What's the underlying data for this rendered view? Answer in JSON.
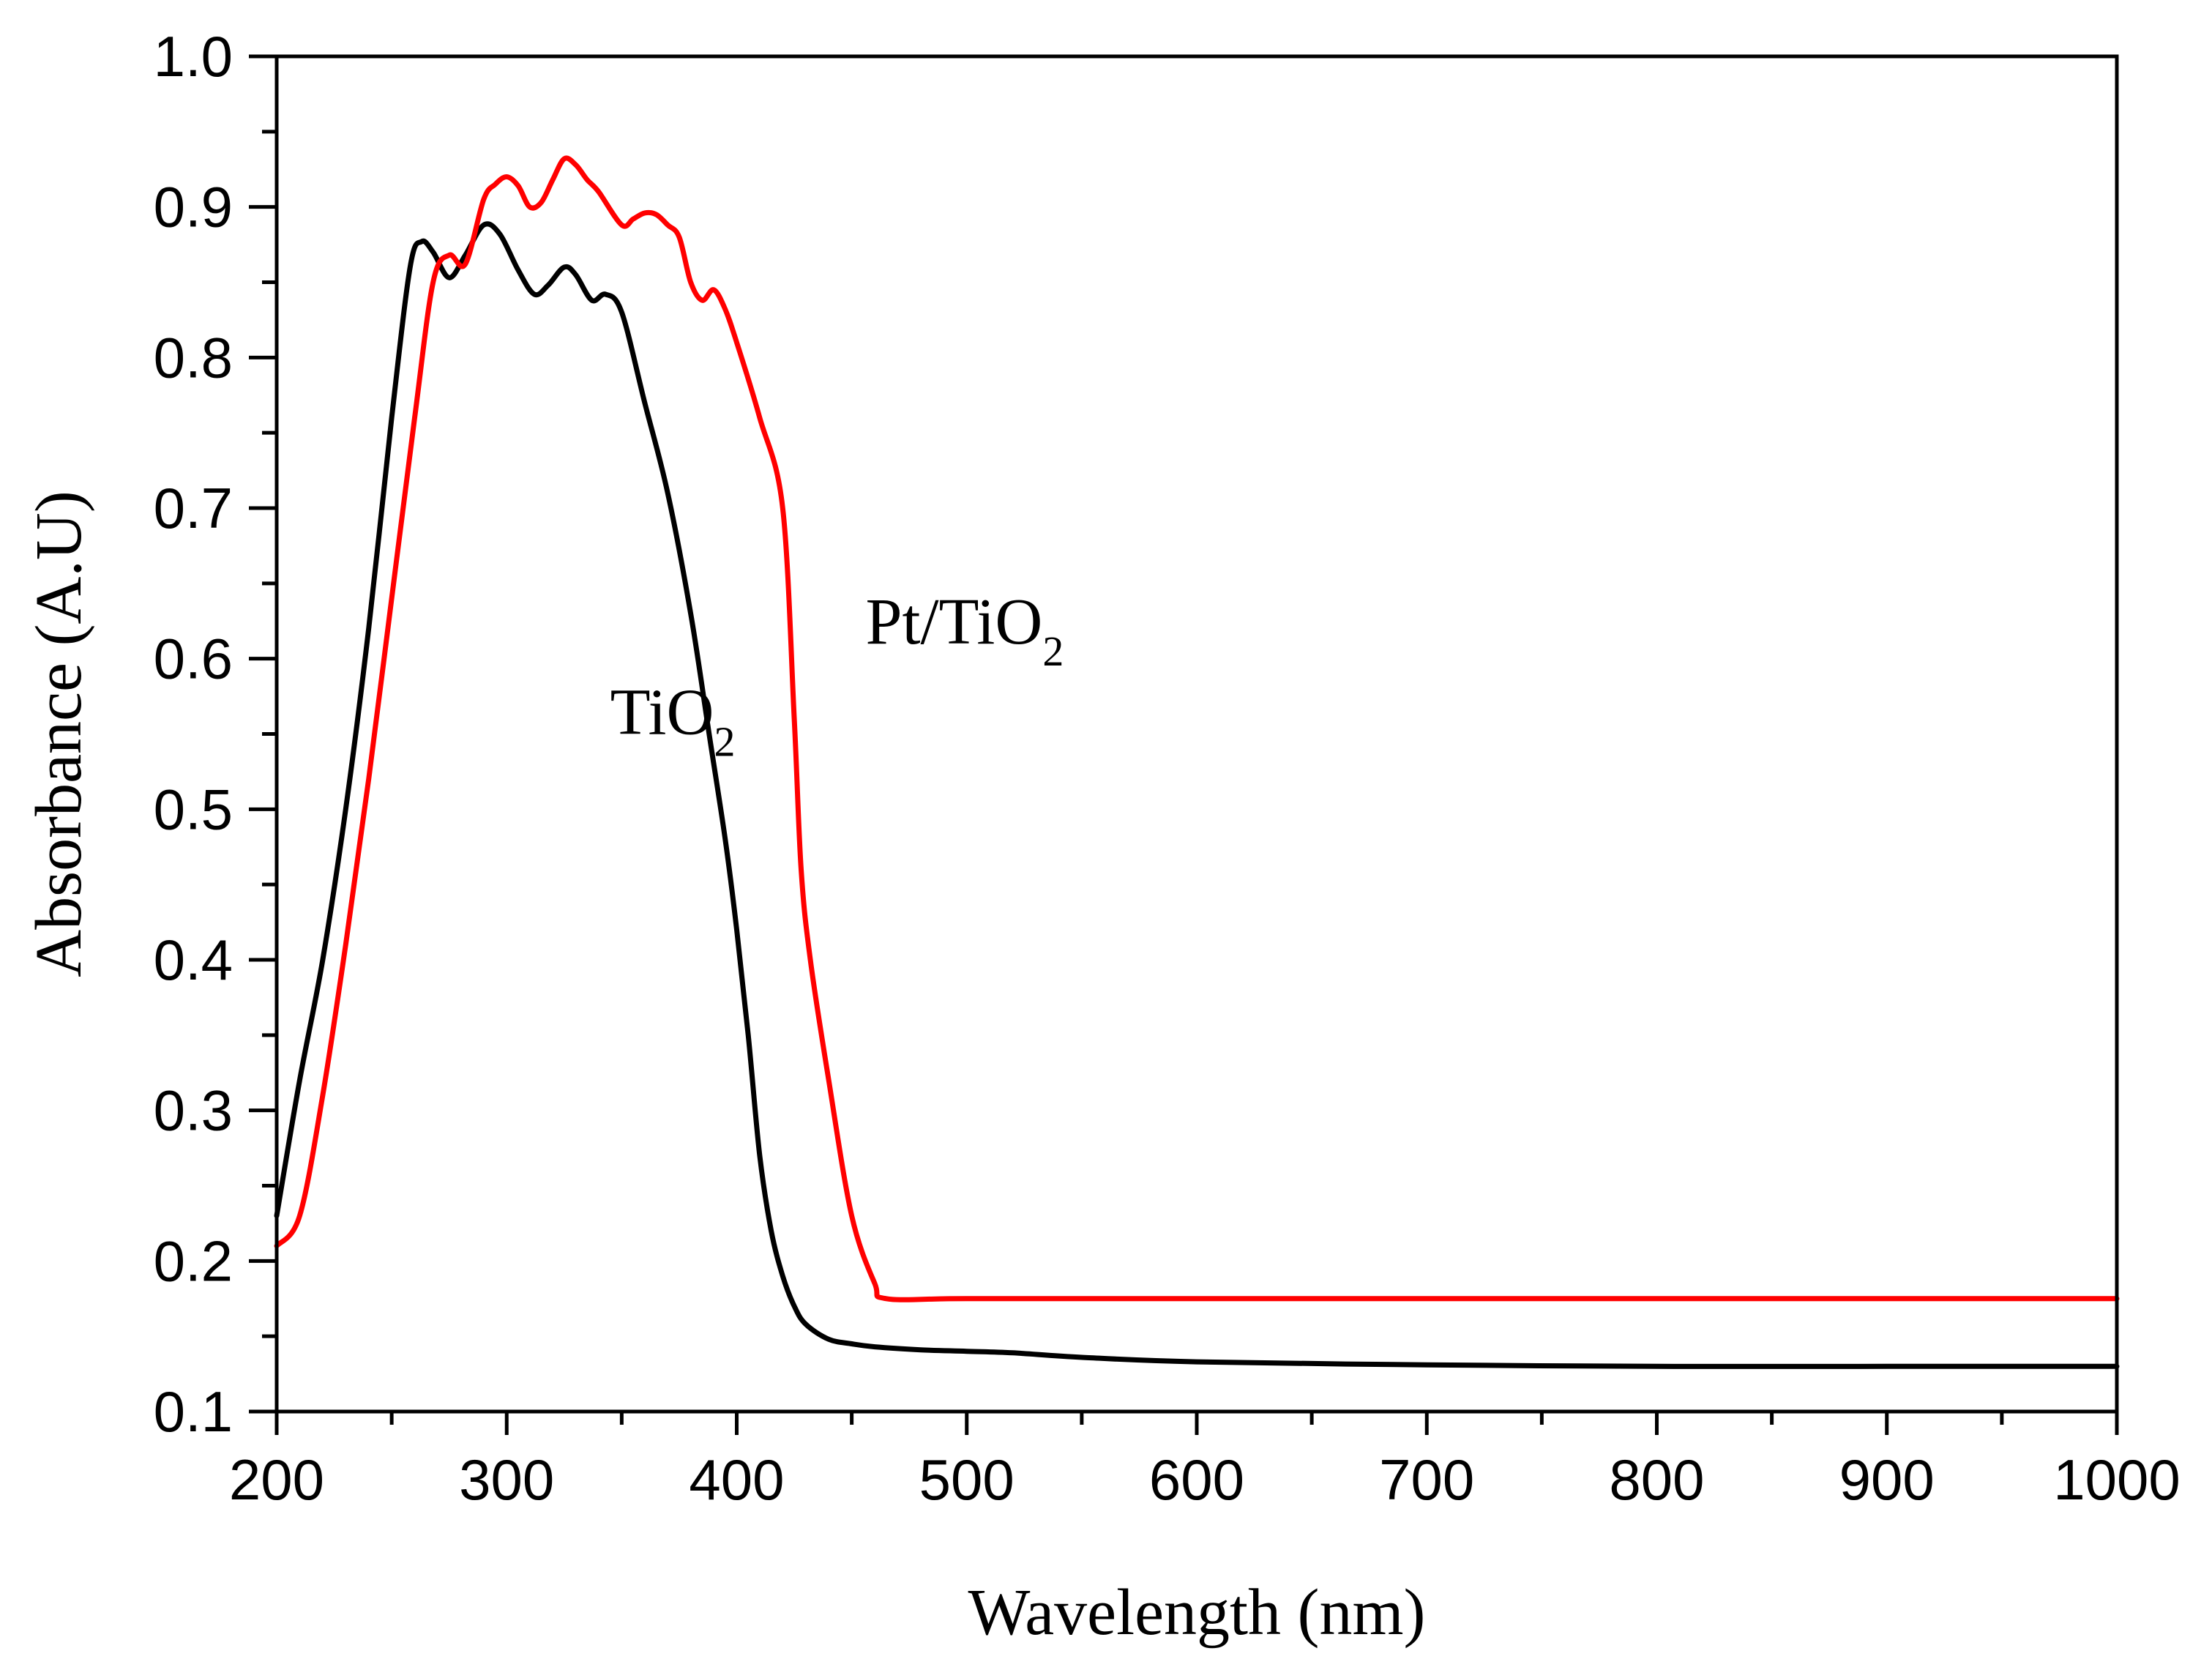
{
  "chart_data": {
    "type": "line",
    "title": "",
    "xlabel": "Wavelength (nm)",
    "ylabel": "Absorbance (A.U)",
    "xlim": [
      200,
      1000
    ],
    "ylim": [
      0.1,
      1.0
    ],
    "xticks": [
      "200",
      "300",
      "400",
      "500",
      "600",
      "700",
      "800",
      "900",
      "1000"
    ],
    "yticks": [
      "0.1",
      "0.2",
      "0.3",
      "0.4",
      "0.5",
      "0.6",
      "0.7",
      "0.8",
      "0.9",
      "1.0"
    ],
    "grid": false,
    "series": [
      {
        "name": "TiO2",
        "label_main": "TiO",
        "label_sub": "2",
        "color": "#000000",
        "x": [
          200,
          210,
          220,
          230,
          240,
          250,
          258,
          263,
          268,
          275,
          282,
          290,
          297,
          305,
          312,
          318,
          325,
          330,
          337,
          343,
          350,
          360,
          370,
          380,
          388,
          395,
          400,
          405,
          410,
          415,
          420,
          425,
          430,
          440,
          450,
          460,
          480,
          500,
          520,
          550,
          600,
          700,
          800,
          900,
          1000
        ],
        "y": [
          0.23,
          0.32,
          0.4,
          0.5,
          0.62,
          0.76,
          0.86,
          0.877,
          0.87,
          0.853,
          0.868,
          0.888,
          0.882,
          0.858,
          0.842,
          0.848,
          0.86,
          0.855,
          0.838,
          0.842,
          0.83,
          0.77,
          0.71,
          0.63,
          0.55,
          0.48,
          0.42,
          0.35,
          0.27,
          0.22,
          0.19,
          0.17,
          0.158,
          0.148,
          0.145,
          0.143,
          0.141,
          0.14,
          0.139,
          0.136,
          0.133,
          0.131,
          0.13,
          0.13,
          0.13
        ]
      },
      {
        "name": "Pt/TiO2",
        "label_main": "Pt/TiO",
        "label_sub": "2",
        "color": "#ff0000",
        "x": [
          200,
          210,
          220,
          230,
          240,
          250,
          260,
          268,
          275,
          282,
          290,
          295,
          300,
          305,
          310,
          315,
          320,
          325,
          330,
          335,
          340,
          350,
          355,
          360,
          365,
          370,
          375,
          380,
          385,
          390,
          395,
          400,
          410,
          420,
          425,
          428,
          432,
          440,
          450,
          460,
          465,
          500,
          600,
          700,
          800,
          900,
          1000
        ],
        "y": [
          0.21,
          0.23,
          0.31,
          0.41,
          0.52,
          0.64,
          0.76,
          0.85,
          0.868,
          0.862,
          0.905,
          0.915,
          0.92,
          0.914,
          0.9,
          0.903,
          0.918,
          0.932,
          0.928,
          0.918,
          0.91,
          0.888,
          0.892,
          0.896,
          0.895,
          0.888,
          0.88,
          0.85,
          0.838,
          0.845,
          0.832,
          0.81,
          0.76,
          0.7,
          0.56,
          0.46,
          0.4,
          0.32,
          0.23,
          0.185,
          0.175,
          0.175,
          0.175,
          0.175,
          0.175,
          0.175,
          0.175
        ]
      }
    ],
    "annotations": [
      {
        "series": "TiO2",
        "anchor_x": 345,
        "anchor_y": 0.55
      },
      {
        "series": "Pt/TiO2",
        "anchor_x": 456,
        "anchor_y": 0.61
      }
    ]
  }
}
